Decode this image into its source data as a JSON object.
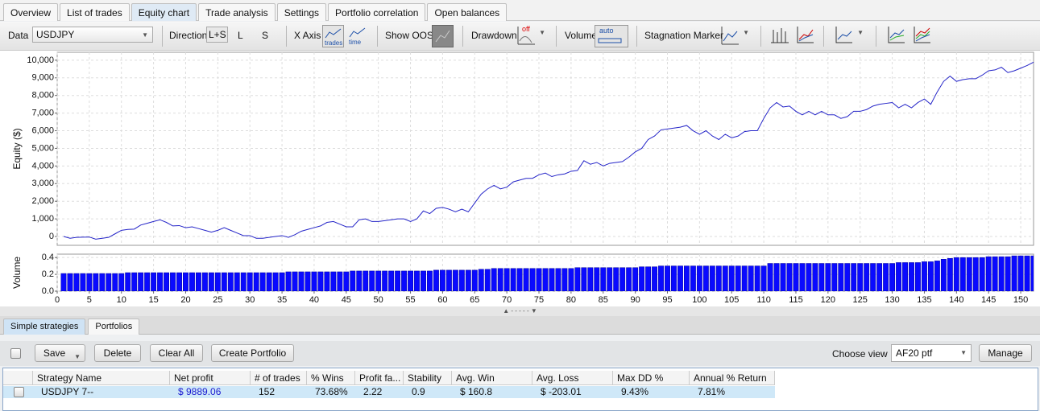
{
  "tabs": [
    "Overview",
    "List of trades",
    "Equity chart",
    "Trade analysis",
    "Settings",
    "Portfolio correlation",
    "Open balances"
  ],
  "toolbar": {
    "data_label": "Data",
    "data_value": "USDJPY",
    "direction_label": "Direction",
    "direction_options": [
      "L+S",
      "L",
      "S"
    ],
    "x_axis_label": "X Axis",
    "x_axis_icons": [
      "trades",
      "time"
    ],
    "show_oos_label": "Show OOS",
    "drawdown_label": "Drawdown",
    "drawdown_icon": "off",
    "volume_label": "Volume",
    "volume_icon": "auto",
    "stagnation_label": "Stagnation Marker"
  },
  "chart_data": [
    {
      "type": "line",
      "ylabel": "Equity ($)",
      "color": "#2424c8",
      "grid": true,
      "x": [
        1,
        2,
        3,
        4,
        5,
        6,
        7,
        8,
        9,
        10,
        11,
        12,
        13,
        14,
        15,
        16,
        17,
        18,
        19,
        20,
        21,
        22,
        23,
        24,
        25,
        26,
        27,
        28,
        29,
        30,
        31,
        32,
        33,
        34,
        35,
        36,
        37,
        38,
        39,
        40,
        41,
        42,
        43,
        44,
        45,
        46,
        47,
        48,
        49,
        50,
        51,
        52,
        53,
        54,
        55,
        56,
        57,
        58,
        59,
        60,
        61,
        62,
        63,
        64,
        65,
        66,
        67,
        68,
        69,
        70,
        71,
        72,
        73,
        74,
        75,
        76,
        77,
        78,
        79,
        80,
        81,
        82,
        83,
        84,
        85,
        86,
        87,
        88,
        89,
        90,
        91,
        92,
        93,
        94,
        95,
        96,
        97,
        98,
        99,
        100,
        101,
        102,
        103,
        104,
        105,
        106,
        107,
        108,
        109,
        110,
        111,
        112,
        113,
        114,
        115,
        116,
        117,
        118,
        119,
        120,
        121,
        122,
        123,
        124,
        125,
        126,
        127,
        128,
        129,
        130,
        131,
        132,
        133,
        134,
        135,
        136,
        137,
        138,
        139,
        140,
        141,
        142,
        143,
        144,
        145,
        146,
        147,
        148,
        149,
        150,
        151,
        152
      ],
      "values": [
        0,
        -100,
        -50,
        -40,
        -30,
        -150,
        -100,
        -50,
        150,
        350,
        400,
        420,
        650,
        750,
        850,
        950,
        800,
        600,
        620,
        500,
        550,
        450,
        350,
        250,
        350,
        500,
        350,
        200,
        50,
        50,
        -100,
        -100,
        -50,
        0,
        50,
        -50,
        100,
        300,
        400,
        500,
        600,
        800,
        850,
        700,
        550,
        550,
        950,
        1000,
        850,
        850,
        900,
        950,
        1000,
        1000,
        850,
        1000,
        1450,
        1300,
        1600,
        1650,
        1550,
        1400,
        1550,
        1400,
        1900,
        2400,
        2700,
        2900,
        2700,
        2800,
        3100,
        3200,
        3300,
        3300,
        3500,
        3600,
        3400,
        3500,
        3550,
        3700,
        3750,
        4300,
        4100,
        4200,
        4000,
        4150,
        4200,
        4250,
        4500,
        4800,
        5000,
        5500,
        5700,
        6050,
        6100,
        6150,
        6200,
        6300,
        6000,
        5800,
        6000,
        5700,
        5500,
        5800,
        5600,
        5700,
        5950,
        6000,
        6000,
        6700,
        7300,
        7600,
        7350,
        7400,
        7100,
        6900,
        7100,
        6900,
        7100,
        6900,
        6900,
        6700,
        6800,
        7100,
        7100,
        7200,
        7400,
        7500,
        7550,
        7600,
        7300,
        7500,
        7300,
        7600,
        7800,
        7500,
        8200,
        8800,
        9100,
        8800,
        8900,
        8950,
        8950,
        9150,
        9400,
        9450,
        9600,
        9300,
        9400,
        9550,
        9700,
        9889.06
      ],
      "xlim": [
        0,
        152
      ],
      "xticks": [
        0,
        5,
        10,
        15,
        20,
        25,
        30,
        35,
        40,
        45,
        50,
        55,
        60,
        65,
        70,
        75,
        80,
        85,
        90,
        95,
        100,
        105,
        110,
        115,
        120,
        125,
        130,
        135,
        140,
        145,
        150
      ],
      "ylim": [
        -500,
        10450
      ],
      "yticks": [
        0,
        {
          "value": 1000,
          "label": "1,000"
        },
        {
          "value": 2000,
          "label": "2,000"
        },
        {
          "value": 3000,
          "label": "3,000"
        },
        {
          "value": 4000,
          "label": "4,000"
        },
        {
          "value": 5000,
          "label": "5,000"
        },
        {
          "value": 6000,
          "label": "6,000"
        },
        {
          "value": 7000,
          "label": "7,000"
        },
        {
          "value": 8000,
          "label": "8,000"
        },
        {
          "value": 9000,
          "label": "9,000"
        },
        {
          "value": 10000,
          "label": "10,000"
        }
      ]
    },
    {
      "type": "bar",
      "ylabel": "Volume",
      "color": "#0a0aff",
      "grid": true,
      "x": [
        1,
        2,
        3,
        4,
        5,
        6,
        7,
        8,
        9,
        10,
        11,
        12,
        13,
        14,
        15,
        16,
        17,
        18,
        19,
        20,
        21,
        22,
        23,
        24,
        25,
        26,
        27,
        28,
        29,
        30,
        31,
        32,
        33,
        34,
        35,
        36,
        37,
        38,
        39,
        40,
        41,
        42,
        43,
        44,
        45,
        46,
        47,
        48,
        49,
        50,
        51,
        52,
        53,
        54,
        55,
        56,
        57,
        58,
        59,
        60,
        61,
        62,
        63,
        64,
        65,
        66,
        67,
        68,
        69,
        70,
        71,
        72,
        73,
        74,
        75,
        76,
        77,
        78,
        79,
        80,
        81,
        82,
        83,
        84,
        85,
        86,
        87,
        88,
        89,
        90,
        91,
        92,
        93,
        94,
        95,
        96,
        97,
        98,
        99,
        100,
        101,
        102,
        103,
        104,
        105,
        106,
        107,
        108,
        109,
        110,
        111,
        112,
        113,
        114,
        115,
        116,
        117,
        118,
        119,
        120,
        121,
        122,
        123,
        124,
        125,
        126,
        127,
        128,
        129,
        130,
        131,
        132,
        133,
        134,
        135,
        136,
        137,
        138,
        139,
        140,
        141,
        142,
        143,
        144,
        145,
        146,
        147,
        148,
        149,
        150,
        151,
        152
      ],
      "values": [
        0.21,
        0.21,
        0.21,
        0.21,
        0.21,
        0.21,
        0.21,
        0.21,
        0.21,
        0.21,
        0.22,
        0.22,
        0.22,
        0.22,
        0.22,
        0.22,
        0.22,
        0.22,
        0.22,
        0.22,
        0.22,
        0.22,
        0.22,
        0.22,
        0.22,
        0.22,
        0.22,
        0.22,
        0.22,
        0.22,
        0.22,
        0.22,
        0.22,
        0.22,
        0.22,
        0.23,
        0.23,
        0.23,
        0.23,
        0.23,
        0.23,
        0.23,
        0.23,
        0.23,
        0.23,
        0.24,
        0.24,
        0.24,
        0.24,
        0.24,
        0.24,
        0.24,
        0.24,
        0.24,
        0.24,
        0.24,
        0.24,
        0.24,
        0.25,
        0.25,
        0.25,
        0.25,
        0.25,
        0.25,
        0.25,
        0.26,
        0.26,
        0.27,
        0.27,
        0.27,
        0.27,
        0.27,
        0.27,
        0.27,
        0.27,
        0.27,
        0.27,
        0.27,
        0.27,
        0.27,
        0.28,
        0.28,
        0.28,
        0.28,
        0.28,
        0.28,
        0.28,
        0.28,
        0.28,
        0.28,
        0.29,
        0.29,
        0.29,
        0.3,
        0.3,
        0.3,
        0.3,
        0.3,
        0.3,
        0.3,
        0.3,
        0.3,
        0.3,
        0.3,
        0.3,
        0.3,
        0.3,
        0.3,
        0.3,
        0.3,
        0.33,
        0.33,
        0.33,
        0.33,
        0.33,
        0.33,
        0.33,
        0.33,
        0.33,
        0.33,
        0.33,
        0.33,
        0.33,
        0.33,
        0.33,
        0.33,
        0.33,
        0.33,
        0.33,
        0.33,
        0.34,
        0.34,
        0.34,
        0.34,
        0.35,
        0.35,
        0.36,
        0.38,
        0.39,
        0.4,
        0.4,
        0.4,
        0.4,
        0.4,
        0.41,
        0.41,
        0.41,
        0.41,
        0.42,
        0.42,
        0.42,
        0.42
      ],
      "xlim": [
        0,
        152
      ],
      "xticks": [
        0,
        5,
        10,
        15,
        20,
        25,
        30,
        35,
        40,
        45,
        50,
        55,
        60,
        65,
        70,
        75,
        80,
        85,
        90,
        95,
        100,
        105,
        110,
        115,
        120,
        125,
        130,
        135,
        140,
        145,
        150
      ],
      "ylim": [
        0,
        0.44
      ],
      "yticks": [
        {
          "value": 0,
          "label": "0.0"
        },
        0.2,
        0.4
      ]
    }
  ],
  "bottom_tabs": [
    "Simple strategies",
    "Portfolios"
  ],
  "buttons": [
    "Save",
    "Delete",
    "Clear All",
    "Create Portfolio"
  ],
  "choose_view_label": "Choose view",
  "view_value": "AF20 ptf",
  "manage_button": "Manage",
  "table": {
    "columns": [
      "Strategy Name",
      "Net profit",
      "# of trades",
      "% Wins",
      "Profit fa...",
      "Stability",
      "Avg. Win",
      "Avg. Loss",
      "Max DD %",
      "Annual % Return"
    ],
    "rows": [
      [
        "USDJPY 7--",
        "$ 9889.06",
        "152",
        "73.68%",
        "2.22",
        "0.9",
        "$ 160.8",
        "$ -203.01",
        "9.43%",
        "7.81%"
      ]
    ]
  }
}
